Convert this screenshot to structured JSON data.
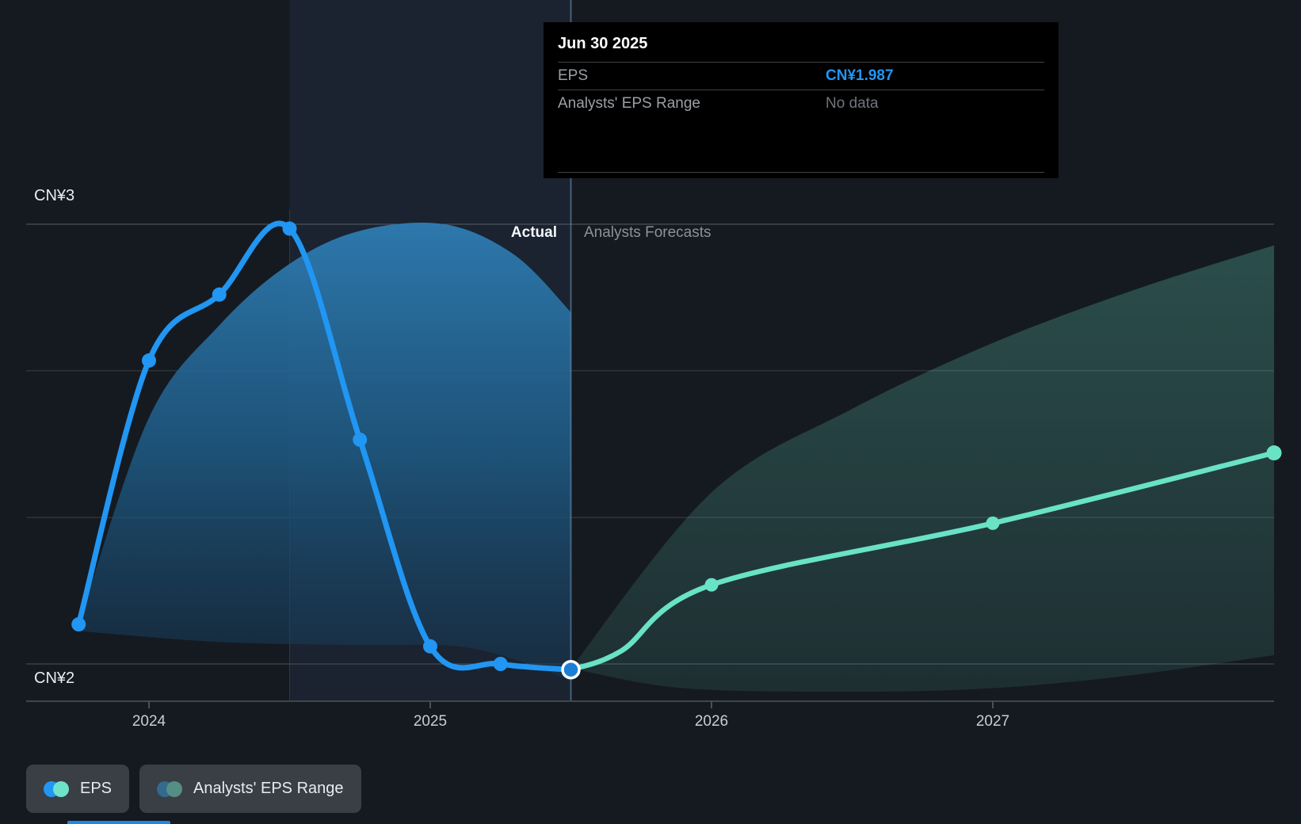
{
  "tooltip": {
    "date": "Jun 30 2025",
    "rows": [
      {
        "label": "EPS",
        "value": "CN¥1.987",
        "value_color": "#2196f3"
      },
      {
        "label": "Analysts' EPS Range",
        "value": "No data",
        "value_color": "#6f757b"
      }
    ]
  },
  "annotations": {
    "actual": "Actual",
    "forecast": "Analysts Forecasts"
  },
  "legend": [
    {
      "label": "EPS",
      "colors": [
        "#2196f3",
        "#6fe3ca"
      ]
    },
    {
      "label": "Analysts' EPS Range",
      "colors": [
        "#336a8e",
        "#558e85"
      ]
    }
  ],
  "colors": {
    "background": "#151a21",
    "actual_line": "#2196f3",
    "forecast_line": "#69e2c6",
    "divider": "rgba(115,160,200,0.50)"
  },
  "chart_data": {
    "type": "line",
    "title": "EPS actual vs analysts forecasts",
    "currency": "CN¥",
    "ylabel": "EPS",
    "y_axis": {
      "ticks": [
        {
          "label": "CN¥3",
          "value": 3
        },
        {
          "label": "CN¥2",
          "value": 2
        }
      ],
      "range_shown": [
        1.9,
        3.05
      ],
      "grid_values": [
        2,
        2.333,
        2.667,
        3
      ]
    },
    "x_axis": {
      "ticks": [
        {
          "label": "2024",
          "t": 2024
        },
        {
          "label": "2025",
          "t": 2025
        },
        {
          "label": "2026",
          "t": 2026
        },
        {
          "label": "2027",
          "t": 2027
        }
      ],
      "range_shown": [
        2023.56,
        2028.0
      ]
    },
    "divider_t": 2025.5,
    "highlight_span": {
      "from_t": 2024.5,
      "to_t": 2025.5
    },
    "series": [
      {
        "name": "EPS",
        "kind": "actual",
        "color": "#2196f3",
        "points": [
          {
            "t": 2023.75,
            "value": 2.09
          },
          {
            "t": 2024.0,
            "value": 2.69
          },
          {
            "t": 2024.25,
            "value": 2.84
          },
          {
            "t": 2024.5,
            "value": 2.99
          },
          {
            "t": 2024.75,
            "value": 2.51
          },
          {
            "t": 2025.0,
            "value": 2.04
          },
          {
            "t": 2025.25,
            "value": 2.0
          },
          {
            "t": 2025.5,
            "value": 1.987,
            "marker": "ring"
          }
        ]
      },
      {
        "name": "EPS forecast",
        "kind": "forecast",
        "color": "#69e2c6",
        "points": [
          {
            "t": 2025.5,
            "value": 1.987,
            "marker": "none"
          },
          {
            "t": 2025.68,
            "value": 2.03,
            "marker": "none"
          },
          {
            "t": 2026.0,
            "value": 2.18
          },
          {
            "t": 2027.0,
            "value": 2.32
          },
          {
            "t": 2028.0,
            "value": 2.48
          }
        ]
      }
    ],
    "bands": [
      {
        "name": "actual-range",
        "top": [
          {
            "t": 2023.75,
            "v": 2.09
          },
          {
            "t": 2024.0,
            "v": 2.56
          },
          {
            "t": 2024.25,
            "v": 2.77
          },
          {
            "t": 2024.5,
            "v": 2.91
          },
          {
            "t": 2024.75,
            "v": 2.985
          },
          {
            "t": 2025.05,
            "v": 3.0
          },
          {
            "t": 2025.3,
            "v": 2.93
          },
          {
            "t": 2025.5,
            "v": 2.8
          }
        ],
        "bottom": [
          {
            "t": 2023.75,
            "v": 2.075
          },
          {
            "t": 2024.25,
            "v": 2.05
          },
          {
            "t": 2024.75,
            "v": 2.043
          },
          {
            "t": 2025.1,
            "v": 2.04
          },
          {
            "t": 2025.35,
            "v": 2.0
          },
          {
            "t": 2025.5,
            "v": 1.96
          }
        ]
      },
      {
        "name": "forecast-range",
        "top": [
          {
            "t": 2025.5,
            "v": 1.99
          },
          {
            "t": 2026.0,
            "v": 2.39
          },
          {
            "t": 2026.5,
            "v": 2.58
          },
          {
            "t": 2027.0,
            "v": 2.73
          },
          {
            "t": 2027.5,
            "v": 2.85
          },
          {
            "t": 2028.0,
            "v": 2.952
          }
        ],
        "bottom": [
          {
            "t": 2025.5,
            "v": 1.99
          },
          {
            "t": 2025.9,
            "v": 1.945
          },
          {
            "t": 2026.5,
            "v": 1.937
          },
          {
            "t": 2027.0,
            "v": 1.945
          },
          {
            "t": 2027.5,
            "v": 1.975
          },
          {
            "t": 2028.0,
            "v": 2.02
          }
        ]
      }
    ]
  }
}
